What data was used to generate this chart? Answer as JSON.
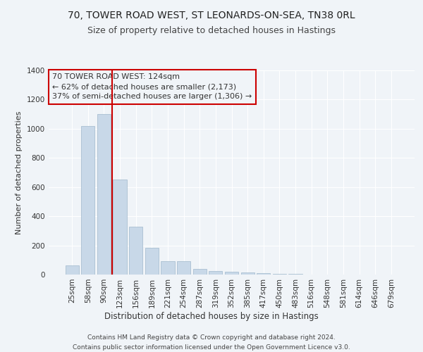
{
  "title1": "70, TOWER ROAD WEST, ST LEONARDS-ON-SEA, TN38 0RL",
  "title2": "Size of property relative to detached houses in Hastings",
  "xlabel": "Distribution of detached houses by size in Hastings",
  "ylabel": "Number of detached properties",
  "categories": [
    "25sqm",
    "58sqm",
    "90sqm",
    "123sqm",
    "156sqm",
    "189sqm",
    "221sqm",
    "254sqm",
    "287sqm",
    "319sqm",
    "352sqm",
    "385sqm",
    "417sqm",
    "450sqm",
    "483sqm",
    "516sqm",
    "548sqm",
    "581sqm",
    "614sqm",
    "646sqm",
    "679sqm"
  ],
  "values": [
    65,
    1020,
    1100,
    650,
    330,
    185,
    90,
    90,
    40,
    25,
    20,
    15,
    10,
    5,
    3,
    2,
    2,
    1,
    1,
    1,
    0
  ],
  "bar_color": "#c8d8e8",
  "bar_edge_color": "#a0b8cc",
  "vline_color": "#cc0000",
  "annotation_box_text": "70 TOWER ROAD WEST: 124sqm\n← 62% of detached houses are smaller (2,173)\n37% of semi-detached houses are larger (1,306) →",
  "annotation_box_color": "#cc0000",
  "ylim": [
    0,
    1400
  ],
  "yticks": [
    0,
    200,
    400,
    600,
    800,
    1000,
    1200,
    1400
  ],
  "footer": "Contains HM Land Registry data © Crown copyright and database right 2024.\nContains public sector information licensed under the Open Government Licence v3.0.",
  "bg_color": "#f0f4f8",
  "grid_color": "#ffffff",
  "title1_fontsize": 10,
  "title2_fontsize": 9,
  "xlabel_fontsize": 8.5,
  "ylabel_fontsize": 8,
  "tick_fontsize": 7.5,
  "annotation_fontsize": 8,
  "footer_fontsize": 6.5
}
